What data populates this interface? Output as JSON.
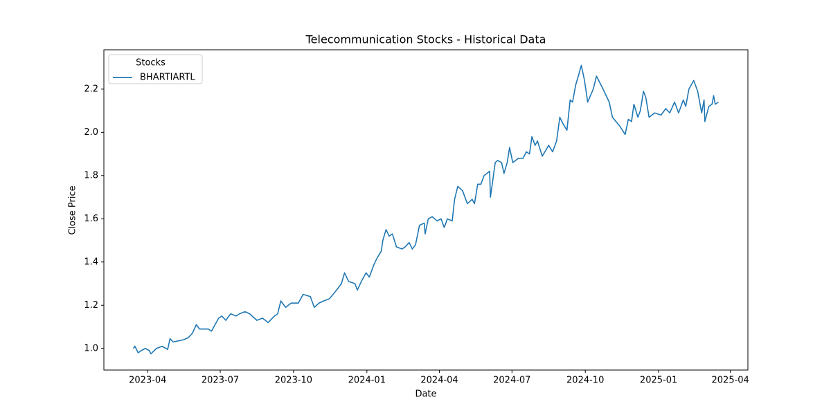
{
  "chart_data": {
    "type": "line",
    "title": "Telecommunication Stocks - Historical Data",
    "x_label": "Date",
    "y_label": "Close Price",
    "legend_title": "Stocks",
    "legend_loc": "upper left",
    "x": [
      "2023-03-14",
      "2023-03-16",
      "2023-03-20",
      "2023-03-24",
      "2023-03-29",
      "2023-04-03",
      "2023-04-05",
      "2023-04-12",
      "2023-04-19",
      "2023-04-24",
      "2023-04-26",
      "2023-04-29",
      "2023-05-03",
      "2023-05-16",
      "2023-05-22",
      "2023-05-27",
      "2023-06-01",
      "2023-06-05",
      "2023-06-16",
      "2023-06-20",
      "2023-06-29",
      "2023-07-03",
      "2023-07-08",
      "2023-07-14",
      "2023-07-21",
      "2023-07-25",
      "2023-08-01",
      "2023-08-07",
      "2023-08-16",
      "2023-08-23",
      "2023-08-30",
      "2023-09-07",
      "2023-09-11",
      "2023-09-15",
      "2023-09-21",
      "2023-09-28",
      "2023-10-07",
      "2023-10-13",
      "2023-10-22",
      "2023-10-27",
      "2023-11-02",
      "2023-11-08",
      "2023-11-15",
      "2023-11-24",
      "2023-11-30",
      "2023-12-04",
      "2023-12-09",
      "2023-12-17",
      "2023-12-20",
      "2023-12-25",
      "2023-12-31",
      "2024-01-04",
      "2024-01-10",
      "2024-01-14",
      "2024-01-19",
      "2024-01-21",
      "2024-01-25",
      "2024-01-29",
      "2024-02-02",
      "2024-02-07",
      "2024-02-14",
      "2024-02-18",
      "2024-02-23",
      "2024-02-27",
      "2024-03-02",
      "2024-03-07",
      "2024-03-13",
      "2024-03-14",
      "2024-03-18",
      "2024-03-23",
      "2024-03-29",
      "2024-04-03",
      "2024-04-07",
      "2024-04-11",
      "2024-04-17",
      "2024-04-20",
      "2024-04-24",
      "2024-04-30",
      "2024-05-06",
      "2024-05-12",
      "2024-05-15",
      "2024-05-19",
      "2024-05-23",
      "2024-05-27",
      "2024-06-03",
      "2024-06-04",
      "2024-06-10",
      "2024-06-13",
      "2024-06-18",
      "2024-06-21",
      "2024-06-25",
      "2024-06-28",
      "2024-07-02",
      "2024-07-09",
      "2024-07-15",
      "2024-07-19",
      "2024-07-23",
      "2024-07-26",
      "2024-07-30",
      "2024-08-02",
      "2024-08-08",
      "2024-08-13",
      "2024-08-16",
      "2024-08-21",
      "2024-08-26",
      "2024-08-30",
      "2024-09-03",
      "2024-09-08",
      "2024-09-12",
      "2024-09-15",
      "2024-09-19",
      "2024-09-23",
      "2024-09-26",
      "2024-09-30",
      "2024-10-04",
      "2024-10-11",
      "2024-10-15",
      "2024-10-22",
      "2024-10-31",
      "2024-11-04",
      "2024-11-13",
      "2024-11-20",
      "2024-11-24",
      "2024-11-28",
      "2024-12-01",
      "2024-12-06",
      "2024-12-09",
      "2024-12-13",
      "2024-12-16",
      "2024-12-20",
      "2024-12-27",
      "2025-01-04",
      "2025-01-10",
      "2025-01-15",
      "2025-01-21",
      "2025-01-26",
      "2025-02-01",
      "2025-02-04",
      "2025-02-08",
      "2025-02-14",
      "2025-02-19",
      "2025-02-24",
      "2025-02-27",
      "2025-02-28",
      "2025-03-05",
      "2025-03-09",
      "2025-03-11",
      "2025-03-13",
      "2025-03-17"
    ],
    "series": [
      {
        "name": "BHARTIARTL",
        "color": "#1f77b4",
        "values": [
          1.0,
          1.01,
          0.98,
          0.99,
          1.0,
          0.99,
          0.975,
          1.0,
          1.01,
          1.0,
          0.995,
          1.045,
          1.03,
          1.04,
          1.05,
          1.07,
          1.11,
          1.09,
          1.09,
          1.08,
          1.14,
          1.15,
          1.13,
          1.16,
          1.15,
          1.16,
          1.17,
          1.16,
          1.13,
          1.14,
          1.12,
          1.15,
          1.16,
          1.22,
          1.19,
          1.21,
          1.21,
          1.25,
          1.24,
          1.19,
          1.21,
          1.22,
          1.23,
          1.27,
          1.3,
          1.35,
          1.31,
          1.3,
          1.27,
          1.31,
          1.35,
          1.33,
          1.39,
          1.42,
          1.45,
          1.5,
          1.55,
          1.52,
          1.53,
          1.47,
          1.46,
          1.47,
          1.49,
          1.46,
          1.48,
          1.57,
          1.58,
          1.53,
          1.6,
          1.61,
          1.59,
          1.6,
          1.56,
          1.6,
          1.59,
          1.69,
          1.75,
          1.73,
          1.67,
          1.69,
          1.67,
          1.76,
          1.76,
          1.8,
          1.82,
          1.7,
          1.86,
          1.87,
          1.86,
          1.81,
          1.86,
          1.93,
          1.86,
          1.88,
          1.88,
          1.91,
          1.9,
          1.98,
          1.94,
          1.96,
          1.89,
          1.92,
          1.94,
          1.91,
          1.96,
          2.07,
          2.04,
          2.01,
          2.15,
          2.14,
          2.22,
          2.27,
          2.31,
          2.24,
          2.14,
          2.2,
          2.26,
          2.21,
          2.14,
          2.07,
          2.03,
          1.99,
          2.06,
          2.05,
          2.13,
          2.07,
          2.1,
          2.19,
          2.16,
          2.07,
          2.09,
          2.08,
          2.11,
          2.09,
          2.14,
          2.09,
          2.15,
          2.12,
          2.2,
          2.24,
          2.19,
          2.09,
          2.15,
          2.05,
          2.12,
          2.13,
          2.17,
          2.13,
          2.14
        ]
      }
    ],
    "xlim": [
      "2023-02-05",
      "2025-04-23"
    ],
    "xticks": [
      {
        "value": "2023-04-01",
        "label": "2023-04"
      },
      {
        "value": "2023-07-01",
        "label": "2023-07"
      },
      {
        "value": "2023-10-01",
        "label": "2023-10"
      },
      {
        "value": "2024-01-01",
        "label": "2024-01"
      },
      {
        "value": "2024-04-01",
        "label": "2024-04"
      },
      {
        "value": "2024-07-01",
        "label": "2024-07"
      },
      {
        "value": "2024-10-01",
        "label": "2024-10"
      },
      {
        "value": "2025-01-01",
        "label": "2025-01"
      },
      {
        "value": "2025-04-01",
        "label": "2025-04"
      }
    ],
    "ylim": [
      0.9,
      2.382
    ],
    "yticks": [
      {
        "value": 1.0,
        "label": "1.0"
      },
      {
        "value": 1.2,
        "label": "1.2"
      },
      {
        "value": 1.4,
        "label": "1.4"
      },
      {
        "value": 1.6,
        "label": "1.6"
      },
      {
        "value": 1.8,
        "label": "1.8"
      },
      {
        "value": 2.0,
        "label": "2.0"
      },
      {
        "value": 2.2,
        "label": "2.2"
      }
    ],
    "grid": false
  }
}
